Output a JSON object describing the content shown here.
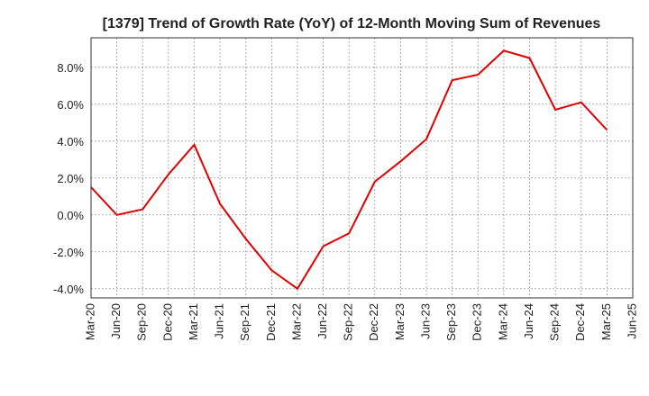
{
  "chart_data": {
    "type": "line",
    "title": "[1379]  Trend of Growth Rate (YoY) of 12-Month Moving Sum of Revenues",
    "xlabel": "",
    "ylabel": "",
    "categories": [
      "Mar-20",
      "Jun-20",
      "Sep-20",
      "Dec-20",
      "Mar-21",
      "Jun-21",
      "Sep-21",
      "Dec-21",
      "Mar-22",
      "Jun-22",
      "Sep-22",
      "Dec-22",
      "Mar-23",
      "Jun-23",
      "Sep-23",
      "Dec-23",
      "Mar-24",
      "Jun-24",
      "Sep-24",
      "Dec-24",
      "Mar-25",
      "Jun-25"
    ],
    "series": [
      {
        "values": [
          1.5,
          0.0,
          0.3,
          2.2,
          3.8,
          0.6,
          -1.3,
          -3.0,
          -4.0,
          -1.7,
          -1.0,
          1.8,
          2.9,
          4.1,
          7.3,
          7.6,
          8.9,
          8.5,
          5.7,
          6.1,
          4.6,
          null
        ]
      }
    ],
    "ylim": [
      -4.5,
      9.6
    ],
    "y_ticks": [
      -4.0,
      -2.0,
      0.0,
      2.0,
      4.0,
      6.0,
      8.0
    ],
    "y_tick_labels": [
      "-4.0%",
      "-2.0%",
      "0.0%",
      "2.0%",
      "4.0%",
      "6.0%",
      "8.0%"
    ],
    "grid": true,
    "line_color": "#e00000"
  }
}
